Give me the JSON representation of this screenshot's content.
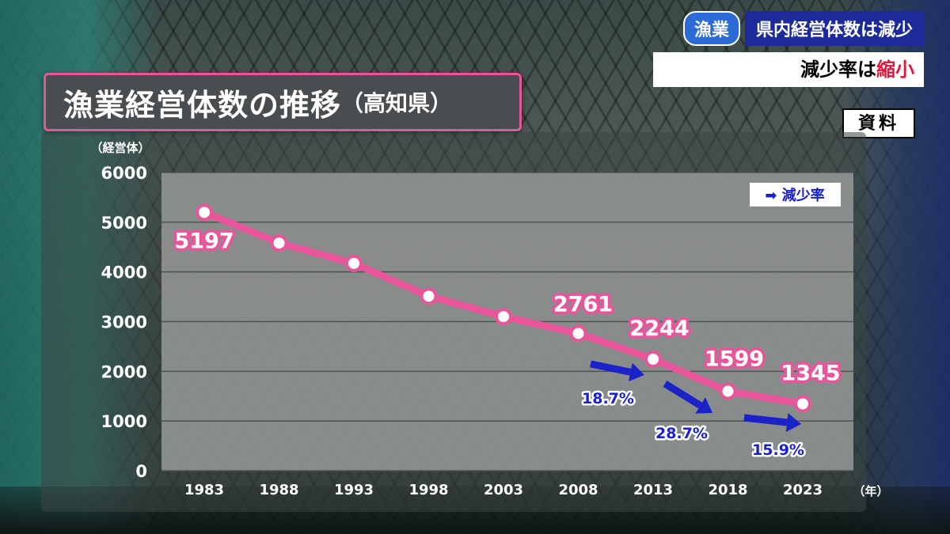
{
  "header": {
    "category": "漁業",
    "headline": "県内経営体数は減少",
    "sub_headline": "減少率は",
    "sub_headline_accent": "縮小",
    "source_label": "資料",
    "title_main": "漁業経営体数の推移",
    "title_sub": "（高知県）"
  },
  "chart_data": {
    "type": "line",
    "ylabel": "（経営体）",
    "xlabel": "（年）",
    "ylim": [
      0,
      6000
    ],
    "yticks": [
      0,
      1000,
      2000,
      3000,
      4000,
      5000,
      6000
    ],
    "grid": true,
    "categories": [
      "1983",
      "1988",
      "1993",
      "1998",
      "2003",
      "2008",
      "2013",
      "2018",
      "2023"
    ],
    "series": [
      {
        "values": [
          5197,
          4580,
          4170,
          3510,
          3100,
          2761,
          2244,
          1599,
          1345
        ],
        "data_labels": [
          "5197",
          "",
          "",
          "",
          "",
          "2761",
          "2244",
          "1599",
          "1345"
        ]
      }
    ],
    "legend": {
      "label": "➡ 減少率",
      "placement": "top-right"
    },
    "annotations": [
      {
        "from": "2008",
        "to": "2013",
        "text": "18.7%"
      },
      {
        "from": "2013",
        "to": "2018",
        "text": "28.7%"
      },
      {
        "from": "2018",
        "to": "2023",
        "text": "15.9%"
      }
    ],
    "colors": {
      "line": "#e8559a",
      "arrow": "#1b22c7",
      "plot_bg": "#8f9391"
    }
  }
}
